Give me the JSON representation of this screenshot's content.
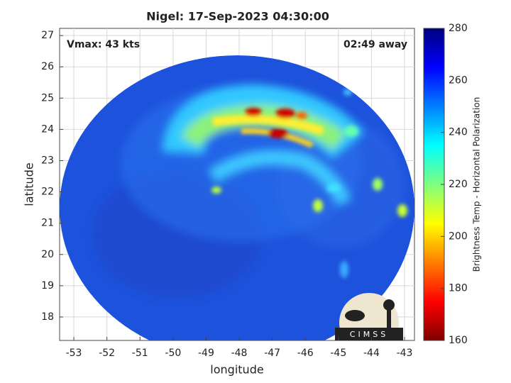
{
  "chart_data": {
    "type": "image",
    "title": "Nigel: 17-Sep-2023 04:30:00",
    "xlabel": "longitude",
    "ylabel": "latitude",
    "annotations": {
      "left": "Vmax: 43 kts",
      "right": "02:49 away"
    },
    "logo": "CIMSS",
    "xlim": [
      -53.43,
      -42.7
    ],
    "xticks": [
      -53,
      -52,
      -51,
      -50,
      -49,
      -48,
      -47,
      -46,
      -45,
      -44,
      -43
    ],
    "ylim": [
      17.25,
      27.23
    ],
    "yticks": [
      18,
      19,
      20,
      21,
      22,
      23,
      24,
      25,
      26,
      27
    ],
    "grid": true,
    "colorbar": {
      "label": "Brightness Temp - Horizontal Polarization",
      "lim": [
        160,
        280
      ],
      "ticks": [
        160,
        180,
        200,
        220,
        240,
        260,
        280
      ],
      "colormap": [
        "#7f0000",
        "#ff0000",
        "#ff7f00",
        "#ffff00",
        "#7fff7f",
        "#00ffff",
        "#007fff",
        "#0000ff",
        "#00007f"
      ]
    }
  }
}
